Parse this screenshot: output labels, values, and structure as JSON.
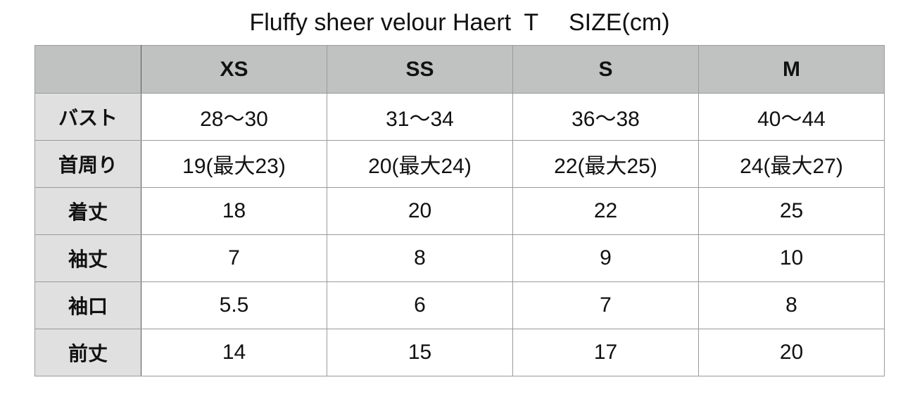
{
  "title": "Fluffy sheer velour Haert  T　 SIZE(cm)",
  "table": {
    "header": [
      "XS",
      "SS",
      "S",
      "M"
    ],
    "rows": [
      {
        "label": "バスト",
        "cells": [
          "28〜30",
          "31〜34",
          "36〜38",
          "40〜44"
        ]
      },
      {
        "label": "首周り",
        "cells": [
          "19(最大23)",
          "20(最大24)",
          "22(最大25)",
          "24(最大27)"
        ]
      },
      {
        "label": "着丈",
        "cells": [
          "18",
          "20",
          "22",
          "25"
        ]
      },
      {
        "label": "袖丈",
        "cells": [
          "7",
          "8",
          "9",
          "10"
        ]
      },
      {
        "label": "袖口",
        "cells": [
          "5.5",
          "6",
          "7",
          "8"
        ]
      },
      {
        "label": "前丈",
        "cells": [
          "14",
          "15",
          "17",
          "20"
        ]
      }
    ]
  }
}
